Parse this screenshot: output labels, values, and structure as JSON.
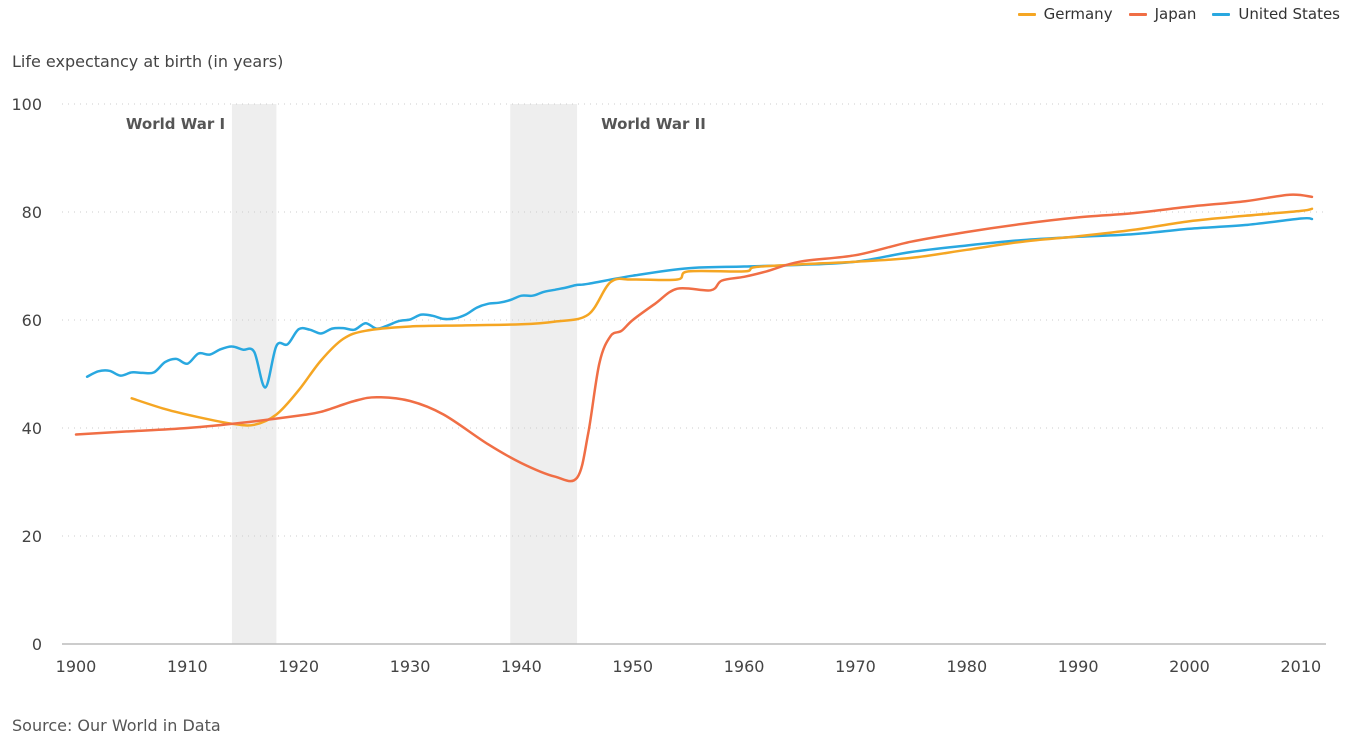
{
  "chart_data": {
    "type": "line",
    "title": "",
    "ylabel": "Life expectancy at birth (in years)",
    "xlabel": "",
    "xlim": [
      1900,
      2011
    ],
    "ylim": [
      0,
      100
    ],
    "xticks": [
      1900,
      1910,
      1920,
      1930,
      1940,
      1950,
      1960,
      1970,
      1980,
      1990,
      2000,
      2010
    ],
    "yticks": [
      0,
      20,
      40,
      60,
      80,
      100
    ],
    "source": "Source: Our World in Data",
    "legend": [
      "Germany",
      "Japan",
      "United States"
    ],
    "shaded_periods": [
      {
        "label": "World War I",
        "start": 1914,
        "end": 1918
      },
      {
        "label": "World War II",
        "start": 1939,
        "end": 1945
      }
    ],
    "series": [
      {
        "name": "Germany",
        "color": "#f5a623",
        "x": [
          1905,
          1908,
          1911,
          1914,
          1916,
          1918,
          1920,
          1922,
          1924,
          1926,
          1930,
          1935,
          1940,
          1943,
          1946,
          1948,
          1950,
          1954,
          1955,
          1960,
          1961,
          1965,
          1970,
          1975,
          1980,
          1985,
          1990,
          1995,
          2000,
          2005,
          2010,
          2011
        ],
        "values": [
          45.5,
          43.5,
          42,
          40.8,
          40.6,
          42.5,
          47,
          52.5,
          56.5,
          58,
          58.8,
          59,
          59.2,
          59.7,
          61,
          67,
          67.5,
          67.5,
          69,
          69,
          69.8,
          70.3,
          70.8,
          71.5,
          73,
          74.5,
          75.5,
          76.7,
          78.3,
          79.3,
          80.2,
          80.6
        ]
      },
      {
        "name": "Japan",
        "color": "#f06e45",
        "x": [
          1900,
          1905,
          1910,
          1915,
          1920,
          1922,
          1925,
          1927,
          1930,
          1933,
          1937,
          1940,
          1943,
          1945,
          1946,
          1947,
          1948,
          1949,
          1950,
          1952,
          1954,
          1957,
          1958,
          1960,
          1962,
          1965,
          1970,
          1975,
          1980,
          1985,
          1990,
          1995,
          2000,
          2005,
          2009,
          2011
        ],
        "values": [
          38.8,
          39.4,
          40,
          41,
          42.3,
          43,
          45,
          45.7,
          45,
          42.5,
          37,
          33.5,
          31,
          30.8,
          39,
          52,
          57,
          58,
          60,
          63,
          65.8,
          65.5,
          67.3,
          68,
          69,
          70.8,
          72,
          74.5,
          76.3,
          77.8,
          79,
          79.8,
          81,
          82,
          83.2,
          82.8
        ]
      },
      {
        "name": "United States",
        "color": "#29a8e0",
        "x": [
          1901,
          1902,
          1903,
          1904,
          1905,
          1906,
          1907,
          1908,
          1909,
          1910,
          1911,
          1912,
          1913,
          1914,
          1915,
          1916,
          1917,
          1918,
          1919,
          1920,
          1921,
          1922,
          1923,
          1924,
          1925,
          1926,
          1927,
          1928,
          1929,
          1930,
          1931,
          1932,
          1933,
          1934,
          1935,
          1936,
          1937,
          1938,
          1939,
          1940,
          1941,
          1942,
          1943,
          1944,
          1945,
          1946,
          1950,
          1955,
          1960,
          1965,
          1970,
          1975,
          1980,
          1985,
          1990,
          1995,
          2000,
          2005,
          2010,
          2011
        ],
        "values": [
          49.5,
          50.5,
          50.6,
          49.7,
          50.3,
          50.2,
          50.3,
          52.2,
          52.8,
          51.9,
          53.8,
          53.6,
          54.6,
          55.1,
          54.5,
          54.1,
          47.5,
          55.2,
          55.5,
          58.3,
          58.2,
          57.5,
          58.4,
          58.5,
          58.2,
          59.4,
          58.4,
          59,
          59.8,
          60.1,
          61,
          60.8,
          60.2,
          60.3,
          61,
          62.3,
          63,
          63.2,
          63.7,
          64.5,
          64.5,
          65.2,
          65.6,
          66,
          66.5,
          66.7,
          68.2,
          69.6,
          69.9,
          70.2,
          70.8,
          72.6,
          73.8,
          74.8,
          75.4,
          75.9,
          76.9,
          77.6,
          78.8,
          78.7
        ]
      }
    ]
  }
}
